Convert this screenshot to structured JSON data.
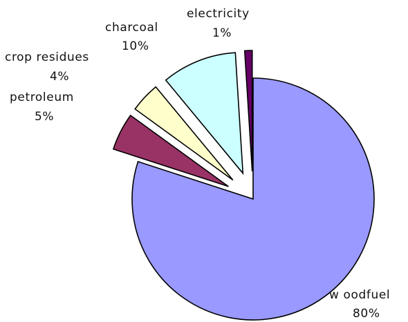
{
  "chart_data": {
    "type": "pie",
    "exploded": true,
    "start": "12 o'clock",
    "direction": "clockwise",
    "legend": "none",
    "slices": [
      {
        "category": "w oodfuel",
        "value": 80,
        "value_label": "80%",
        "color": "#9999ff"
      },
      {
        "category": "petroleum",
        "value": 5,
        "value_label": "5%",
        "color": "#993366"
      },
      {
        "category": "crop residues",
        "value": 4,
        "value_label": "4%",
        "color": "#ffffcc"
      },
      {
        "category": "charcoal",
        "value": 10,
        "value_label": "10%",
        "color": "#ccffff"
      },
      {
        "category": "electricity",
        "value": 1,
        "value_label": "1%",
        "color": "#660066"
      }
    ]
  }
}
